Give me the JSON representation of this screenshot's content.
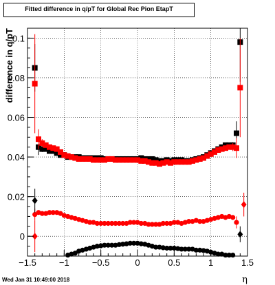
{
  "title": "Fitted difference in q/pT for Global Rec Pion EtapT",
  "timestamp": "Wed Jan 31 10:49:00 2018",
  "chart_data": {
    "type": "scatter",
    "xlabel": "η",
    "ylabel": "difference in q/pT",
    "xlim": [
      -1.5,
      1.5
    ],
    "ylim": [
      -0.01,
      0.105
    ],
    "x_ticks": [
      -1.5,
      -1,
      -0.5,
      0,
      0.5,
      1,
      1.5
    ],
    "x_tick_labels": [
      "−1.5",
      "−1",
      "−0.5",
      "0",
      "0.5",
      "1",
      "1.5"
    ],
    "y_ticks": [
      0,
      0.02,
      0.04,
      0.06,
      0.08,
      0.1
    ],
    "y_tick_labels": [
      "0",
      "0.02",
      "0.04",
      "0.06",
      "0.08",
      "0.1"
    ],
    "grid": true,
    "colors": {
      "black": "#000000",
      "red": "#ff0000"
    },
    "series": [
      {
        "marker": "square",
        "color": "#000000",
        "x": [
          -1.4,
          -1.35,
          -1.3,
          -1.25,
          -1.2,
          -1.15,
          -1.1,
          -1.05,
          -1.0,
          -0.95,
          -0.9,
          -0.85,
          -0.8,
          -0.75,
          -0.7,
          -0.65,
          -0.6,
          -0.55,
          -0.5,
          -0.45,
          -0.4,
          -0.35,
          -0.3,
          -0.25,
          -0.2,
          -0.15,
          -0.1,
          -0.05,
          0.0,
          0.05,
          0.1,
          0.15,
          0.2,
          0.25,
          0.3,
          0.35,
          0.4,
          0.45,
          0.5,
          0.55,
          0.6,
          0.65,
          0.7,
          0.75,
          0.8,
          0.85,
          0.9,
          0.95,
          1.0,
          1.05,
          1.1,
          1.15,
          1.2,
          1.25,
          1.3,
          1.35,
          1.4
        ],
        "y": [
          0.085,
          0.045,
          0.044,
          0.044,
          0.043,
          0.043,
          0.042,
          0.041,
          0.041,
          0.04,
          0.04,
          0.04,
          0.04,
          0.0395,
          0.0395,
          0.0395,
          0.0395,
          0.0395,
          0.0395,
          0.039,
          0.039,
          0.039,
          0.039,
          0.039,
          0.039,
          0.039,
          0.039,
          0.039,
          0.039,
          0.0395,
          0.039,
          0.039,
          0.039,
          0.0385,
          0.038,
          0.038,
          0.0385,
          0.038,
          0.0385,
          0.0385,
          0.0385,
          0.038,
          0.038,
          0.0385,
          0.039,
          0.0395,
          0.04,
          0.041,
          0.042,
          0.043,
          0.044,
          0.045,
          0.046,
          0.046,
          0.046,
          0.052,
          0.098
        ],
        "yerr": [
          0.012,
          0.004,
          0.0015,
          0.001,
          0.001,
          0.001,
          0.001,
          0.001,
          0.001,
          0.001,
          0.001,
          0.001,
          0.001,
          0.001,
          0.001,
          0.001,
          0.001,
          0.001,
          0.001,
          0.001,
          0.001,
          0.001,
          0.001,
          0.001,
          0.001,
          0.001,
          0.001,
          0.001,
          0.001,
          0.001,
          0.001,
          0.001,
          0.001,
          0.001,
          0.001,
          0.001,
          0.001,
          0.001,
          0.001,
          0.001,
          0.001,
          0.001,
          0.001,
          0.001,
          0.001,
          0.001,
          0.001,
          0.001,
          0.001,
          0.001,
          0.001,
          0.001,
          0.001,
          0.001,
          0.0015,
          0.006,
          0.02
        ]
      },
      {
        "marker": "square",
        "color": "#ff0000",
        "x": [
          -1.4,
          -1.35,
          -1.3,
          -1.25,
          -1.2,
          -1.15,
          -1.1,
          -1.05,
          -1.0,
          -0.95,
          -0.9,
          -0.85,
          -0.8,
          -0.75,
          -0.7,
          -0.65,
          -0.6,
          -0.55,
          -0.5,
          -0.45,
          -0.4,
          -0.35,
          -0.3,
          -0.25,
          -0.2,
          -0.15,
          -0.1,
          -0.05,
          0.0,
          0.05,
          0.1,
          0.15,
          0.2,
          0.25,
          0.3,
          0.35,
          0.4,
          0.45,
          0.5,
          0.55,
          0.6,
          0.65,
          0.7,
          0.75,
          0.8,
          0.85,
          0.9,
          0.95,
          1.0,
          1.05,
          1.1,
          1.15,
          1.2,
          1.25,
          1.3,
          1.35,
          1.4
        ],
        "y": [
          0.077,
          0.049,
          0.047,
          0.046,
          0.045,
          0.0445,
          0.044,
          0.0425,
          0.041,
          0.0405,
          0.04,
          0.0395,
          0.039,
          0.039,
          0.039,
          0.039,
          0.0385,
          0.0385,
          0.0385,
          0.0385,
          0.039,
          0.039,
          0.0385,
          0.0385,
          0.0385,
          0.0385,
          0.0385,
          0.0385,
          0.0385,
          0.038,
          0.038,
          0.0375,
          0.037,
          0.037,
          0.0365,
          0.037,
          0.0375,
          0.037,
          0.0375,
          0.0375,
          0.0375,
          0.0375,
          0.0375,
          0.038,
          0.0385,
          0.039,
          0.0395,
          0.0405,
          0.0415,
          0.0425,
          0.0435,
          0.044,
          0.0445,
          0.045,
          0.045,
          0.0445,
          0.075
        ],
        "yerr": [
          0.025,
          0.005,
          0.002,
          0.001,
          0.001,
          0.001,
          0.001,
          0.001,
          0.001,
          0.001,
          0.001,
          0.001,
          0.001,
          0.001,
          0.001,
          0.001,
          0.001,
          0.001,
          0.001,
          0.001,
          0.001,
          0.001,
          0.001,
          0.001,
          0.001,
          0.001,
          0.001,
          0.001,
          0.001,
          0.001,
          0.001,
          0.001,
          0.001,
          0.001,
          0.001,
          0.001,
          0.001,
          0.001,
          0.001,
          0.001,
          0.001,
          0.001,
          0.001,
          0.001,
          0.001,
          0.001,
          0.001,
          0.001,
          0.001,
          0.001,
          0.001,
          0.001,
          0.001,
          0.001,
          0.002,
          0.005,
          0.025
        ]
      },
      {
        "marker": "circle",
        "color": "#ff0000",
        "x": [
          -1.4,
          -1.35,
          -1.3,
          -1.25,
          -1.2,
          -1.15,
          -1.1,
          -1.05,
          -1.0,
          -0.95,
          -0.9,
          -0.85,
          -0.8,
          -0.75,
          -0.7,
          -0.65,
          -0.6,
          -0.55,
          -0.5,
          -0.45,
          -0.4,
          -0.35,
          -0.3,
          -0.25,
          -0.2,
          -0.15,
          -0.1,
          -0.05,
          0.0,
          0.05,
          0.1,
          0.15,
          0.2,
          0.25,
          0.3,
          0.35,
          0.4,
          0.45,
          0.5,
          0.55,
          0.6,
          0.65,
          0.7,
          0.75,
          0.8,
          0.85,
          0.9,
          0.95,
          1.0,
          1.05,
          1.1,
          1.15,
          1.2,
          1.25,
          1.3,
          1.35
        ],
        "y": [
          0.011,
          0.012,
          0.0115,
          0.0115,
          0.012,
          0.012,
          0.012,
          0.0115,
          0.0105,
          0.01,
          0.0095,
          0.009,
          0.0085,
          0.008,
          0.0075,
          0.007,
          0.007,
          0.0065,
          0.0065,
          0.0065,
          0.0065,
          0.0065,
          0.0065,
          0.0065,
          0.0065,
          0.0065,
          0.007,
          0.007,
          0.007,
          0.0065,
          0.0065,
          0.006,
          0.006,
          0.006,
          0.006,
          0.0065,
          0.0065,
          0.0065,
          0.007,
          0.007,
          0.0065,
          0.007,
          0.0075,
          0.0075,
          0.008,
          0.0075,
          0.0075,
          0.008,
          0.0085,
          0.009,
          0.0095,
          0.01,
          0.0095,
          0.01,
          0.0095,
          0.007
        ],
        "yerr": [
          0.003,
          0.001,
          0.0005,
          0.0005,
          0.0005,
          0.0005,
          0.0005,
          0.0005,
          0.0005,
          0.0005,
          0.0005,
          0.0005,
          0.0005,
          0.0005,
          0.0005,
          0.0005,
          0.0005,
          0.0005,
          0.0005,
          0.0005,
          0.0005,
          0.0005,
          0.0005,
          0.0005,
          0.0005,
          0.0005,
          0.0005,
          0.0005,
          0.0005,
          0.0005,
          0.0005,
          0.0005,
          0.0005,
          0.0005,
          0.0005,
          0.0005,
          0.0005,
          0.0005,
          0.0005,
          0.0005,
          0.0005,
          0.0005,
          0.0005,
          0.0005,
          0.0005,
          0.0005,
          0.0005,
          0.0005,
          0.0005,
          0.0005,
          0.0005,
          0.0005,
          0.0005,
          0.0005,
          0.0005,
          0.003
        ]
      },
      {
        "marker": "circle",
        "color": "#000000",
        "x": [
          -1.0,
          -0.95,
          -0.9,
          -0.85,
          -0.8,
          -0.75,
          -0.7,
          -0.65,
          -0.6,
          -0.55,
          -0.5,
          -0.45,
          -0.4,
          -0.35,
          -0.3,
          -0.25,
          -0.2,
          -0.15,
          -0.1,
          -0.05,
          0.0,
          0.05,
          0.1,
          0.15,
          0.2,
          0.25,
          0.3,
          0.35,
          0.4,
          0.45,
          0.5,
          0.55,
          0.6,
          0.65,
          0.7,
          0.75,
          0.8,
          0.85,
          0.9,
          0.95,
          1.0,
          1.05,
          1.1,
          1.15,
          1.2,
          1.25,
          1.3
        ],
        "y": [
          -0.0105,
          -0.0095,
          -0.009,
          -0.0085,
          -0.0075,
          -0.007,
          -0.0065,
          -0.006,
          -0.0055,
          -0.005,
          -0.0048,
          -0.0045,
          -0.0045,
          -0.0045,
          -0.0045,
          -0.0042,
          -0.004,
          -0.0038,
          -0.0035,
          -0.0035,
          -0.0035,
          -0.0038,
          -0.004,
          -0.0045,
          -0.005,
          -0.0055,
          -0.0055,
          -0.0058,
          -0.006,
          -0.006,
          -0.006,
          -0.0062,
          -0.0065,
          -0.0065,
          -0.0065,
          -0.0065,
          -0.007,
          -0.007,
          -0.0072,
          -0.0075,
          -0.008,
          -0.0085,
          -0.009,
          -0.009,
          -0.0095,
          -0.0095,
          -0.0095
        ],
        "yerr": [
          0.0005,
          0.0005,
          0.0005,
          0.0005,
          0.0005,
          0.0005,
          0.0005,
          0.0005,
          0.0005,
          0.0005,
          0.0005,
          0.0005,
          0.0005,
          0.0005,
          0.0005,
          0.0005,
          0.0005,
          0.0005,
          0.0005,
          0.0005,
          0.0005,
          0.0005,
          0.0005,
          0.0005,
          0.0005,
          0.0005,
          0.0005,
          0.0005,
          0.0005,
          0.0005,
          0.0005,
          0.0005,
          0.0005,
          0.0005,
          0.0005,
          0.0005,
          0.0005,
          0.0005,
          0.0005,
          0.0005,
          0.0005,
          0.0005,
          0.0005,
          0.0005,
          0.0005,
          0.0005,
          0.0005
        ]
      },
      {
        "marker": "diamond",
        "color": "#000000",
        "x": [
          -1.4,
          1.4
        ],
        "y": [
          0.018,
          0.001
        ],
        "yerr": [
          0.006,
          0.004
        ]
      },
      {
        "marker": "diamond",
        "color": "#ff0000",
        "x": [
          -1.4,
          1.45
        ],
        "y": [
          0.0,
          0.016
        ],
        "yerr": [
          0.008,
          0.006
        ]
      }
    ]
  }
}
